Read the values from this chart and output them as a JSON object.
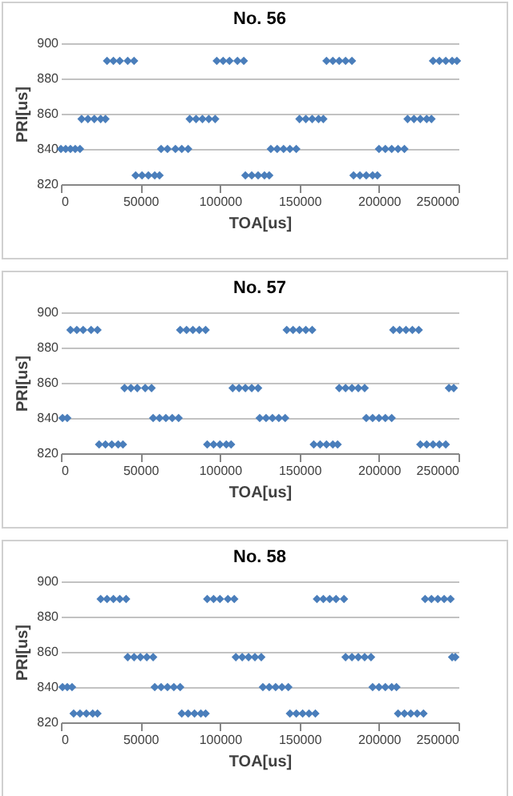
{
  "chart_data": [
    {
      "type": "scatter",
      "title": "No. 56",
      "xlabel": "TOA[us]",
      "ylabel": "PRI[us]",
      "color": "#4a7ebb",
      "marker": "diamond",
      "grid": "y",
      "xlim": [
        0,
        250000
      ],
      "xticks": [
        0,
        50000,
        100000,
        150000,
        200000,
        250000
      ],
      "ylim": [
        820,
        900
      ],
      "yticks": [
        820,
        840,
        860,
        880,
        900
      ],
      "x": [
        0,
        3000,
        6000,
        9000,
        12000,
        13000,
        17000,
        21000,
        25000,
        28000,
        29000,
        33000,
        37000,
        42000,
        46000,
        47000,
        51000,
        55000,
        59000,
        62000,
        63000,
        67000,
        72000,
        76000,
        80000,
        81000,
        85000,
        89000,
        93000,
        97000,
        98000,
        102000,
        106000,
        111000,
        115000,
        116000,
        120000,
        124000,
        128000,
        131000,
        132000,
        136000,
        140000,
        144000,
        148000,
        150000,
        154000,
        158000,
        162000,
        165000,
        167000,
        171000,
        175000,
        179000,
        183000,
        184000,
        188000,
        192000,
        196000,
        199000,
        200000,
        204000,
        208000,
        212000,
        216000,
        218000,
        222000,
        226000,
        230000,
        233000,
        234000,
        238000,
        242000,
        246000,
        249000
      ],
      "values": [
        840,
        840,
        840,
        840,
        840,
        857,
        857,
        857,
        857,
        857,
        890,
        890,
        890,
        890,
        890,
        825,
        825,
        825,
        825,
        825,
        840,
        840,
        840,
        840,
        840,
        857,
        857,
        857,
        857,
        857,
        890,
        890,
        890,
        890,
        890,
        825,
        825,
        825,
        825,
        825,
        840,
        840,
        840,
        840,
        840,
        857,
        857,
        857,
        857,
        857,
        890,
        890,
        890,
        890,
        890,
        825,
        825,
        825,
        825,
        825,
        840,
        840,
        840,
        840,
        840,
        857,
        857,
        857,
        857,
        857,
        890,
        890,
        890,
        890,
        890
      ]
    },
    {
      "type": "scatter",
      "title": "No. 57",
      "xlabel": "TOA[us]",
      "ylabel": "PRI[us]",
      "color": "#4a7ebb",
      "marker": "diamond",
      "grid": "y",
      "xlim": [
        0,
        250000
      ],
      "xticks": [
        0,
        50000,
        100000,
        150000,
        200000,
        250000
      ],
      "ylim": [
        820,
        900
      ],
      "yticks": [
        820,
        840,
        860,
        880,
        900
      ],
      "x": [
        1000,
        4000,
        6000,
        10000,
        14000,
        19000,
        23000,
        24000,
        28000,
        32000,
        36000,
        39000,
        40000,
        44000,
        48000,
        53000,
        57000,
        58000,
        62000,
        66000,
        70000,
        74000,
        75000,
        79000,
        83000,
        87000,
        91000,
        92000,
        96000,
        100000,
        104000,
        107000,
        108000,
        112000,
        116000,
        120000,
        124000,
        125000,
        129000,
        133000,
        137000,
        141000,
        142000,
        146000,
        150000,
        154000,
        158000,
        159000,
        163000,
        167000,
        171000,
        174000,
        175000,
        179000,
        183000,
        187000,
        191000,
        192000,
        196000,
        200000,
        204000,
        208000,
        209000,
        213000,
        217000,
        221000,
        225000,
        226000,
        230000,
        234000,
        238000,
        242000,
        244000,
        247000
      ],
      "values": [
        840,
        840,
        890,
        890,
        890,
        890,
        890,
        825,
        825,
        825,
        825,
        825,
        857,
        857,
        857,
        857,
        857,
        840,
        840,
        840,
        840,
        840,
        890,
        890,
        890,
        890,
        890,
        825,
        825,
        825,
        825,
        825,
        857,
        857,
        857,
        857,
        857,
        840,
        840,
        840,
        840,
        840,
        890,
        890,
        890,
        890,
        890,
        825,
        825,
        825,
        825,
        825,
        857,
        857,
        857,
        857,
        857,
        840,
        840,
        840,
        840,
        840,
        890,
        890,
        890,
        890,
        890,
        825,
        825,
        825,
        825,
        825,
        857,
        857
      ]
    },
    {
      "type": "scatter",
      "title": "No. 58",
      "xlabel": "TOA[us]",
      "ylabel": "PRI[us]",
      "color": "#4a7ebb",
      "marker": "diamond",
      "grid": "y",
      "xlim": [
        0,
        250000
      ],
      "xticks": [
        0,
        50000,
        100000,
        150000,
        200000,
        250000
      ],
      "ylim": [
        820,
        900
      ],
      "yticks": [
        820,
        840,
        860,
        880,
        900
      ],
      "x": [
        1000,
        4000,
        7000,
        8000,
        12000,
        16000,
        20000,
        23000,
        25000,
        29000,
        33000,
        37000,
        41000,
        42000,
        46000,
        50000,
        54000,
        58000,
        59000,
        63000,
        67000,
        71000,
        75000,
        76000,
        80000,
        84000,
        88000,
        91000,
        92000,
        96000,
        100000,
        105000,
        109000,
        110000,
        114000,
        118000,
        122000,
        126000,
        127000,
        131000,
        135000,
        139000,
        143000,
        144000,
        148000,
        152000,
        156000,
        160000,
        161000,
        165000,
        169000,
        173000,
        178000,
        179000,
        183000,
        187000,
        191000,
        195000,
        196000,
        200000,
        204000,
        208000,
        211000,
        212000,
        216000,
        220000,
        224000,
        228000,
        229000,
        233000,
        237000,
        241000,
        245000,
        246000,
        248000
      ],
      "values": [
        840,
        840,
        840,
        825,
        825,
        825,
        825,
        825,
        890,
        890,
        890,
        890,
        890,
        857,
        857,
        857,
        857,
        857,
        840,
        840,
        840,
        840,
        840,
        825,
        825,
        825,
        825,
        825,
        890,
        890,
        890,
        890,
        890,
        857,
        857,
        857,
        857,
        857,
        840,
        840,
        840,
        840,
        840,
        825,
        825,
        825,
        825,
        825,
        890,
        890,
        890,
        890,
        890,
        857,
        857,
        857,
        857,
        857,
        840,
        840,
        840,
        840,
        840,
        825,
        825,
        825,
        825,
        825,
        890,
        890,
        890,
        890,
        890,
        857,
        857
      ]
    }
  ]
}
